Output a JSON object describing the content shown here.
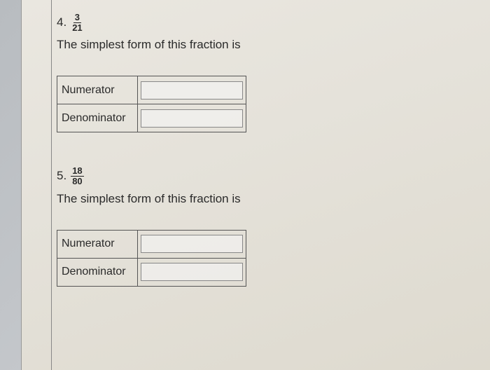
{
  "problems": [
    {
      "number": "4.",
      "fraction": {
        "numerator": "3",
        "denominator": "21"
      },
      "prompt": "The simplest form of this fraction is",
      "rows": [
        {
          "label": "Numerator",
          "value": ""
        },
        {
          "label": "Denominator",
          "value": ""
        }
      ]
    },
    {
      "number": "5.",
      "fraction": {
        "numerator": "18",
        "denominator": "80"
      },
      "prompt": "The simplest form of this fraction is",
      "rows": [
        {
          "label": "Numerator",
          "value": ""
        },
        {
          "label": "Denominator",
          "value": ""
        }
      ]
    }
  ],
  "colors": {
    "page_bg": "#e8e5de",
    "outer_bg": "#bfc3c7",
    "text": "#2a2a2a",
    "border": "#555555",
    "input_border": "#888888"
  }
}
